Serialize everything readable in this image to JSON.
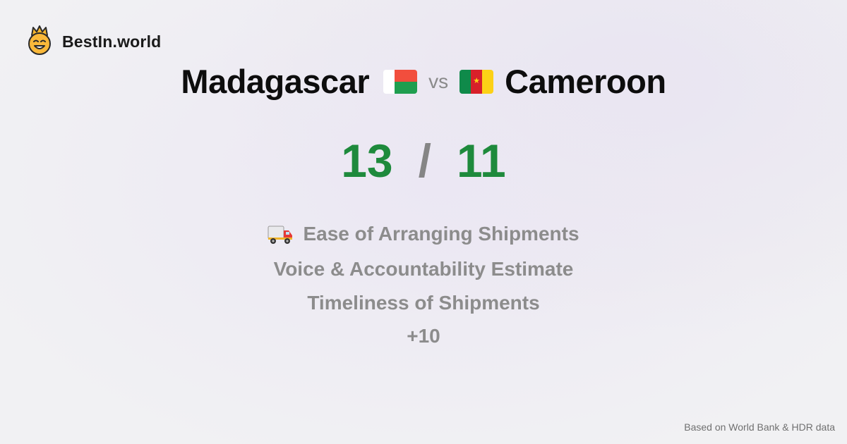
{
  "brand": {
    "name": "BestIn.world",
    "icon": "crown-smiley-icon"
  },
  "comparison": {
    "left_country": "Madagascar",
    "right_country": "Cameroon",
    "vs_label": "vs",
    "left_flag": "madagascar-flag-icon",
    "right_flag": "cameroon-flag-icon"
  },
  "scores": {
    "left": "13",
    "separator": "/",
    "right": "11"
  },
  "metrics": [
    {
      "label": "Ease of Arranging Shipments",
      "icon": "delivery-truck-icon"
    },
    {
      "label": "Voice & Accountability Estimate"
    },
    {
      "label": "Timeliness of Shipments"
    },
    {
      "label": "+10"
    }
  ],
  "footer": {
    "source": "Based on World Bank & HDR data"
  },
  "colors": {
    "score_green": "#1e8a3c",
    "muted_gray": "#8c8c8c",
    "madagascar_white": "#ffffff",
    "madagascar_red": "#f24e3d",
    "madagascar_green": "#1f9e4f",
    "cameroon_green": "#0f8a4a",
    "cameroon_red": "#d8202a",
    "cameroon_yellow": "#fcd116"
  }
}
